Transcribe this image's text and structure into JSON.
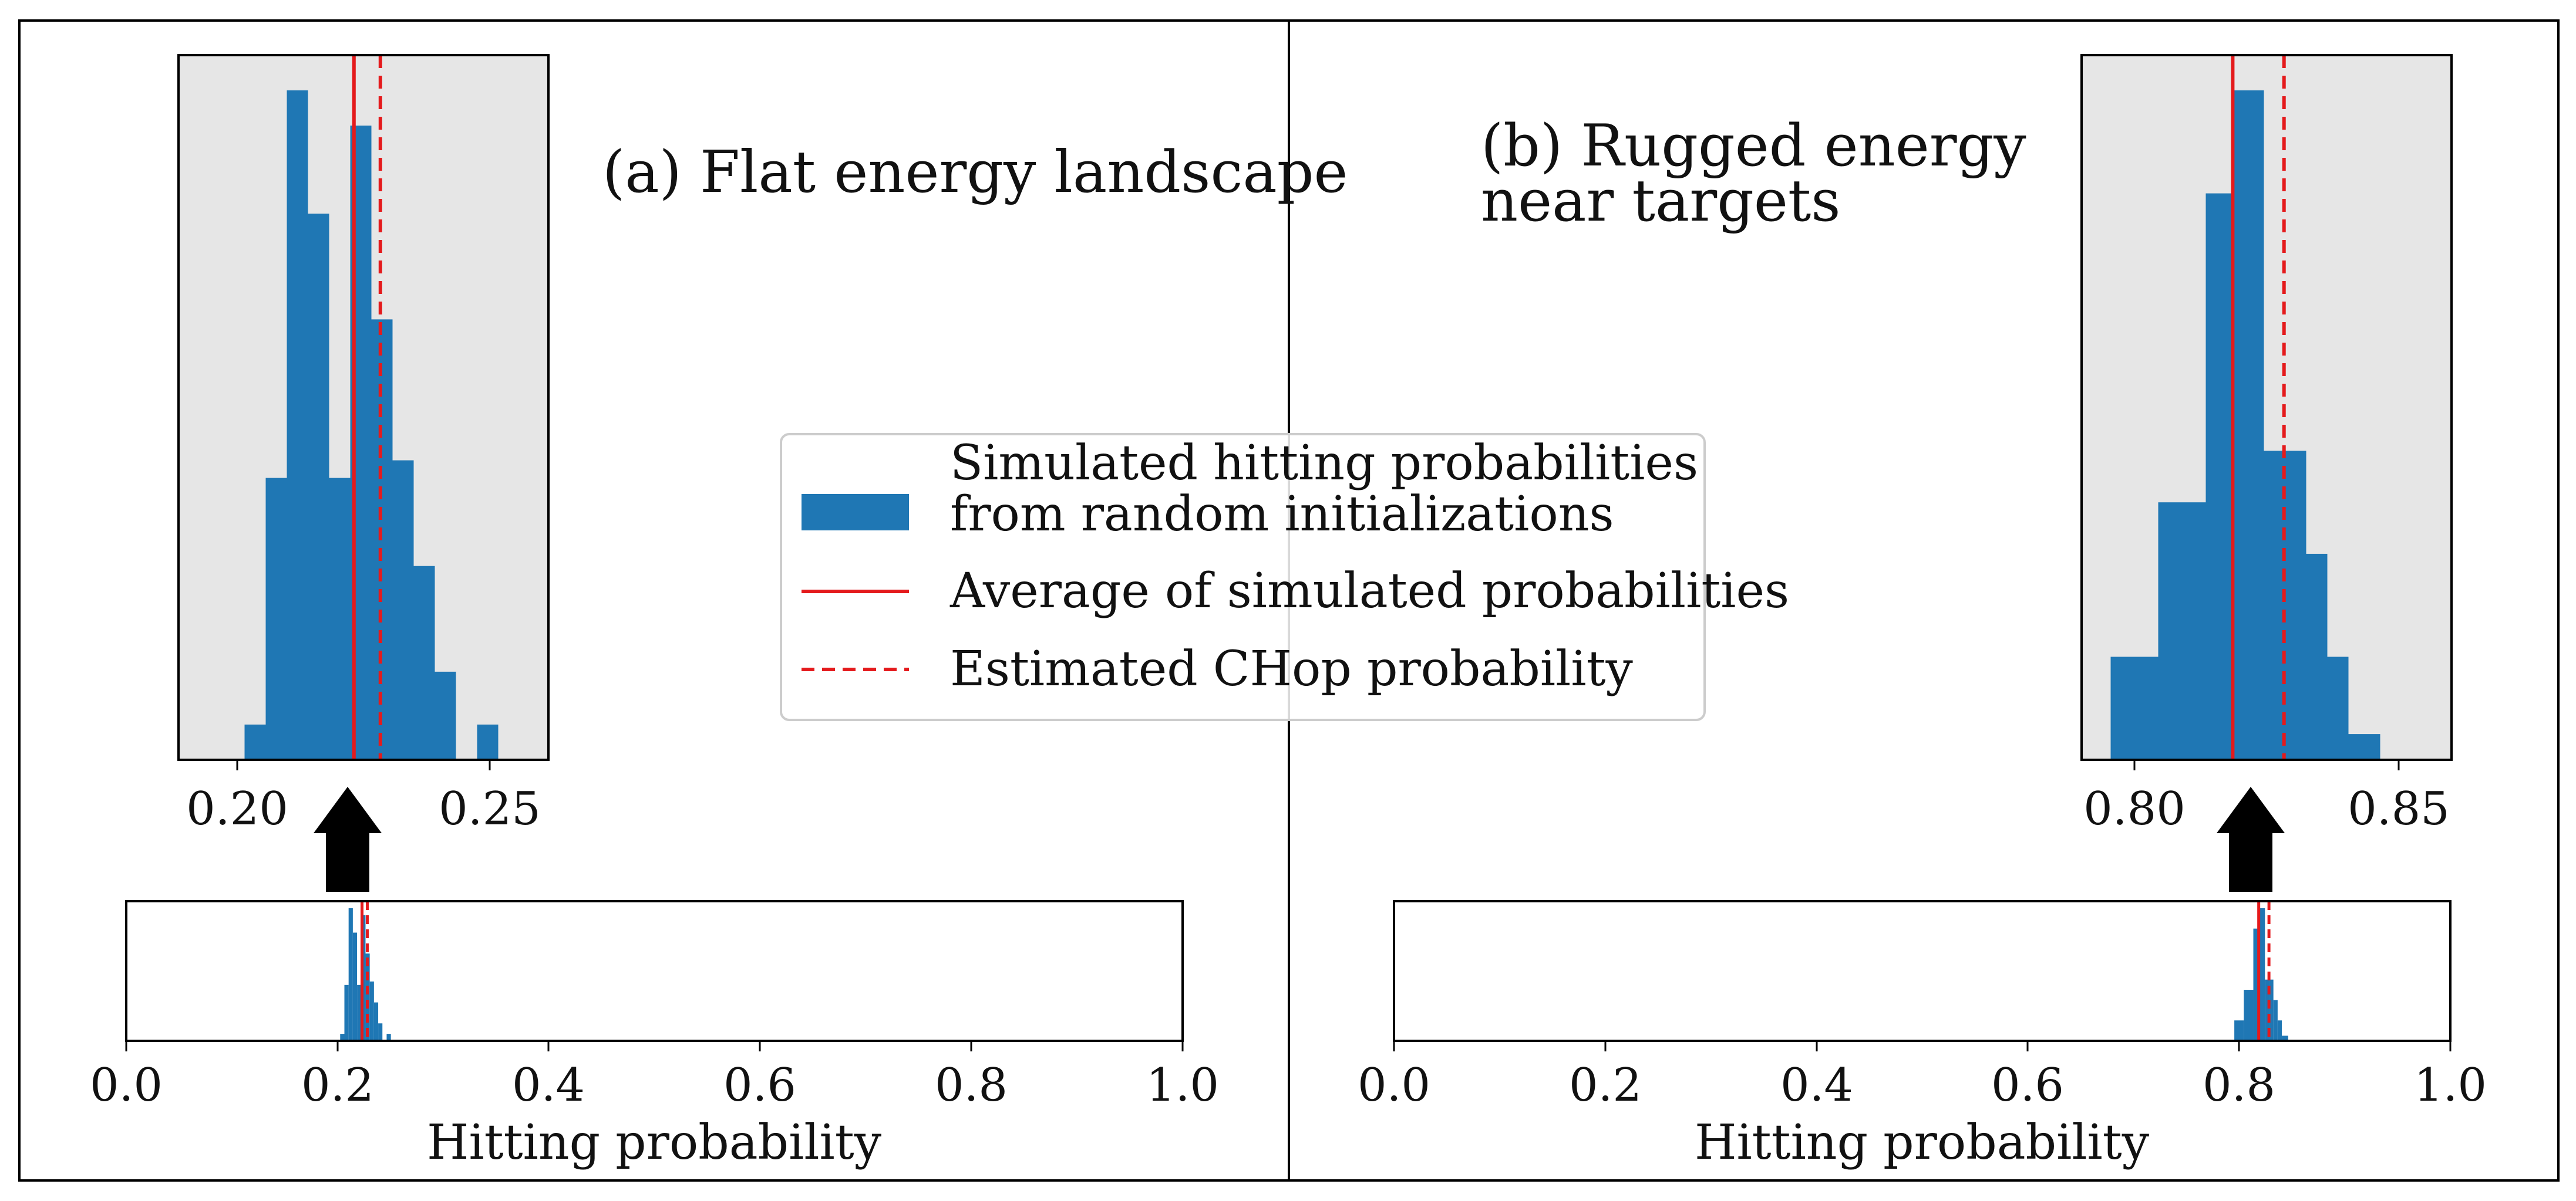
{
  "panels": [
    {
      "title_lines": [
        "(a) Flat energy landscape"
      ],
      "inset_xticks": [
        "0.20",
        "0.25"
      ],
      "main_xticks": [
        "0.0",
        "0.2",
        "0.4",
        "0.6",
        "0.8",
        "1.0"
      ],
      "xlabel": "Hitting probability"
    },
    {
      "title_lines": [
        "(b) Rugged energy",
        "near targets"
      ],
      "inset_xticks": [
        "0.80",
        "0.85"
      ],
      "main_xticks": [
        "0.0",
        "0.2",
        "0.4",
        "0.6",
        "0.8",
        "1.0"
      ],
      "xlabel": "Hitting probability"
    }
  ],
  "legend": {
    "hist_line1": "Simulated hitting probabilities",
    "hist_line2": "from random initializations",
    "avg": "Average of simulated probabilities",
    "est": "Estimated CHop probability"
  },
  "colors": {
    "bar": "#1f77b4",
    "line": "#e41a1c",
    "inset_bg": "#e6e6e6",
    "arrow": "#000000"
  },
  "chart_data": [
    {
      "type": "bar",
      "subtitle": "(a) Flat energy landscape",
      "xlabel": "Hitting probability",
      "main_xlim": [
        0,
        1
      ],
      "inset_xlim": [
        0.19,
        0.26
      ],
      "bin_edges": [
        0.2025,
        0.2065,
        0.2105,
        0.2145,
        0.2185,
        0.2225,
        0.2265,
        0.2305,
        0.2345,
        0.2385,
        0.2425,
        0.2465,
        0.2505
      ],
      "counts": [
        2,
        16,
        38,
        31,
        16,
        36,
        25,
        17,
        11,
        5,
        0,
        2
      ],
      "average": 0.2232,
      "estimated_chop": 0.2282,
      "grid": false,
      "legend_position": "center"
    },
    {
      "type": "bar",
      "subtitle": "(b) Rugged energy near targets",
      "xlabel": "Hitting probability",
      "main_xlim": [
        0,
        1
      ],
      "inset_xlim": [
        0.79,
        0.86
      ],
      "bin_edges": [
        0.7955,
        0.8045,
        0.8135,
        0.8185,
        0.8245,
        0.8285,
        0.8325,
        0.8365,
        0.8405,
        0.8465
      ],
      "counts": [
        4,
        10,
        22,
        26,
        12,
        12,
        8,
        4,
        1
      ],
      "average": 0.8186,
      "estimated_chop": 0.8283,
      "grid": false,
      "legend_position": "center"
    }
  ]
}
